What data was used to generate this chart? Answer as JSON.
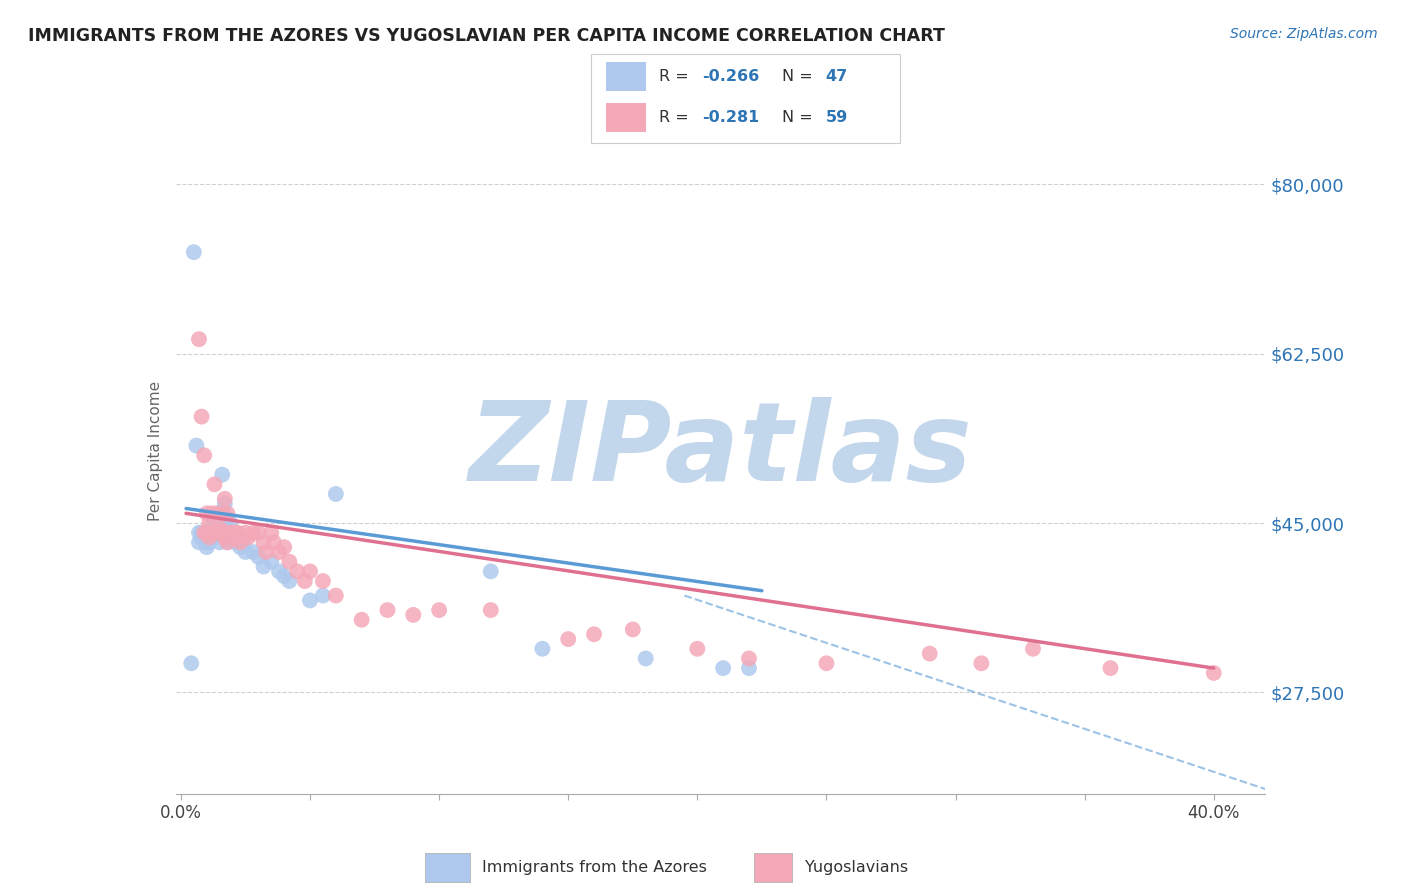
{
  "title": "IMMIGRANTS FROM THE AZORES VS YUGOSLAVIAN PER CAPITA INCOME CORRELATION CHART",
  "source": "Source: ZipAtlas.com",
  "ylabel": "Per Capita Income",
  "xlim": [
    -0.002,
    0.42
  ],
  "ylim": [
    17000,
    88000
  ],
  "yticks": [
    27500,
    45000,
    62500,
    80000
  ],
  "ytick_labels": [
    "$27,500",
    "$45,000",
    "$62,500",
    "$80,000"
  ],
  "xticks": [
    0.0,
    0.05,
    0.1,
    0.15,
    0.2,
    0.25,
    0.3,
    0.35,
    0.4
  ],
  "color_blue": "#aec9ed",
  "color_blue_line": "#5b9bd5",
  "color_pink": "#f4a8b8",
  "color_pink_line": "#e07090",
  "color_blue_accent": "#2e75b6",
  "watermark": "ZIPatlas",
  "watermark_color_zip": "#b8d0e8",
  "watermark_color_atlas": "#90b8d8",
  "blue_points_x": [
    0.004,
    0.005,
    0.006,
    0.007,
    0.007,
    0.008,
    0.008,
    0.009,
    0.009,
    0.01,
    0.01,
    0.01,
    0.011,
    0.011,
    0.012,
    0.012,
    0.013,
    0.014,
    0.015,
    0.015,
    0.016,
    0.017,
    0.017,
    0.018,
    0.018,
    0.019,
    0.02,
    0.021,
    0.022,
    0.023,
    0.024,
    0.025,
    0.028,
    0.03,
    0.032,
    0.035,
    0.038,
    0.04,
    0.042,
    0.05,
    0.055,
    0.06,
    0.12,
    0.14,
    0.18,
    0.21,
    0.22
  ],
  "blue_points_y": [
    30500,
    73000,
    53000,
    44000,
    43000,
    44000,
    43500,
    44000,
    43500,
    44000,
    43000,
    42500,
    43500,
    43000,
    44500,
    43500,
    45000,
    44500,
    46000,
    43000,
    50000,
    47000,
    44000,
    45500,
    43000,
    45000,
    44000,
    43000,
    43500,
    42500,
    43000,
    42000,
    42000,
    41500,
    40500,
    41000,
    40000,
    39500,
    39000,
    37000,
    37500,
    48000,
    40000,
    32000,
    31000,
    30000,
    30000
  ],
  "pink_points_x": [
    0.007,
    0.008,
    0.009,
    0.009,
    0.01,
    0.01,
    0.011,
    0.011,
    0.012,
    0.012,
    0.013,
    0.013,
    0.014,
    0.015,
    0.015,
    0.016,
    0.016,
    0.017,
    0.017,
    0.018,
    0.018,
    0.019,
    0.02,
    0.021,
    0.021,
    0.022,
    0.023,
    0.025,
    0.026,
    0.028,
    0.03,
    0.032,
    0.033,
    0.035,
    0.036,
    0.038,
    0.04,
    0.042,
    0.045,
    0.048,
    0.05,
    0.055,
    0.06,
    0.07,
    0.08,
    0.09,
    0.1,
    0.12,
    0.15,
    0.16,
    0.175,
    0.2,
    0.22,
    0.25,
    0.29,
    0.31,
    0.33,
    0.36,
    0.4
  ],
  "pink_points_y": [
    64000,
    56000,
    52000,
    44000,
    46000,
    44000,
    45000,
    43500,
    46000,
    44000,
    49000,
    44000,
    46000,
    44000,
    44500,
    46000,
    44000,
    47500,
    43500,
    46000,
    43000,
    44000,
    44000,
    44000,
    43500,
    44000,
    43000,
    44000,
    43500,
    44000,
    44000,
    43000,
    42000,
    44000,
    43000,
    42000,
    42500,
    41000,
    40000,
    39000,
    40000,
    39000,
    37500,
    35000,
    36000,
    35500,
    36000,
    36000,
    33000,
    33500,
    34000,
    32000,
    31000,
    30500,
    31500,
    30500,
    32000,
    30000,
    29500
  ],
  "blue_line_x": [
    0.002,
    0.225
  ],
  "blue_line_y": [
    46500,
    38000
  ],
  "pink_line_x": [
    0.002,
    0.4
  ],
  "pink_line_y": [
    46000,
    30000
  ],
  "dashed_line_x": [
    0.195,
    0.42
  ],
  "dashed_line_y": [
    37500,
    17500
  ],
  "background_color": "#ffffff",
  "grid_color": "#d0d0d0"
}
